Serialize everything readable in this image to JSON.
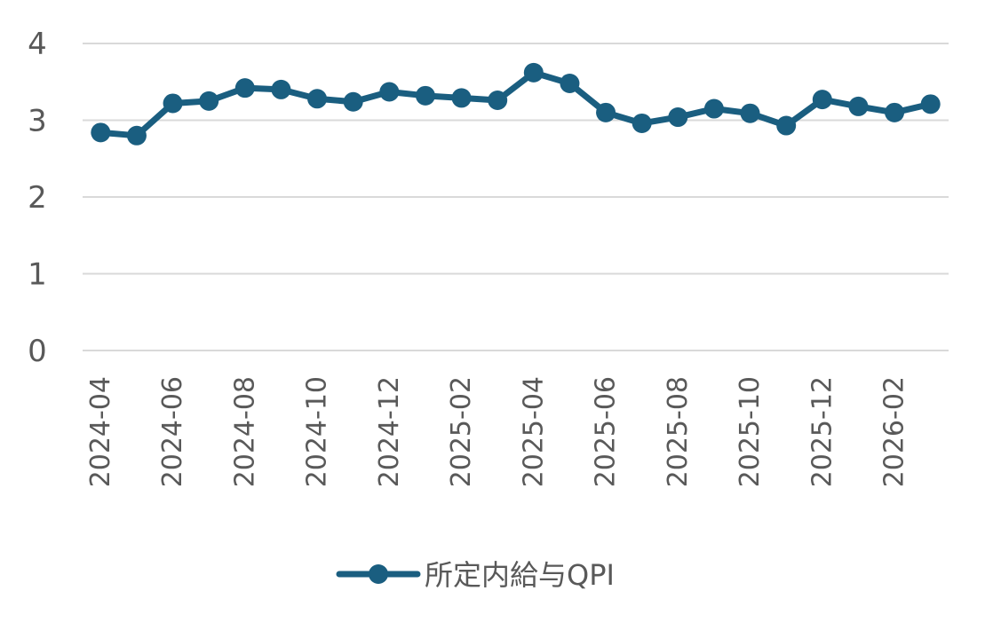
{
  "chart_data": {
    "type": "line",
    "title": "",
    "xlabel": "",
    "ylabel": "",
    "ylim": [
      0,
      4
    ],
    "y_ticks": [
      "0",
      "1",
      "2",
      "3",
      "4"
    ],
    "grid": true,
    "legend_position": "bottom",
    "x": [
      "2024-04",
      "2024-05",
      "2024-06",
      "2024-07",
      "2024-08",
      "2024-09",
      "2024-10",
      "2024-11",
      "2024-12",
      "2025-01",
      "2025-02",
      "2025-03",
      "2025-04",
      "2025-05",
      "2025-06",
      "2025-07",
      "2025-08",
      "2025-09",
      "2025-10",
      "2025-11",
      "2025-12",
      "2026-01",
      "2026-02",
      "2026-03"
    ],
    "x_tick_labels": [
      "2024-04",
      "2024-06",
      "2024-08",
      "2024-10",
      "2024-12",
      "2025-02",
      "2025-04",
      "2025-06",
      "2025-08",
      "2025-10",
      "2025-12",
      "2026-02"
    ],
    "series": [
      {
        "name": "所定内給与QPI",
        "color": "#1a5e80",
        "values": [
          2.84,
          2.8,
          3.22,
          3.25,
          3.42,
          3.4,
          3.28,
          3.24,
          3.37,
          3.32,
          3.29,
          3.26,
          3.62,
          3.48,
          3.1,
          2.96,
          3.04,
          3.15,
          3.09,
          2.93,
          3.27,
          3.18,
          3.1,
          3.21
        ]
      }
    ]
  }
}
